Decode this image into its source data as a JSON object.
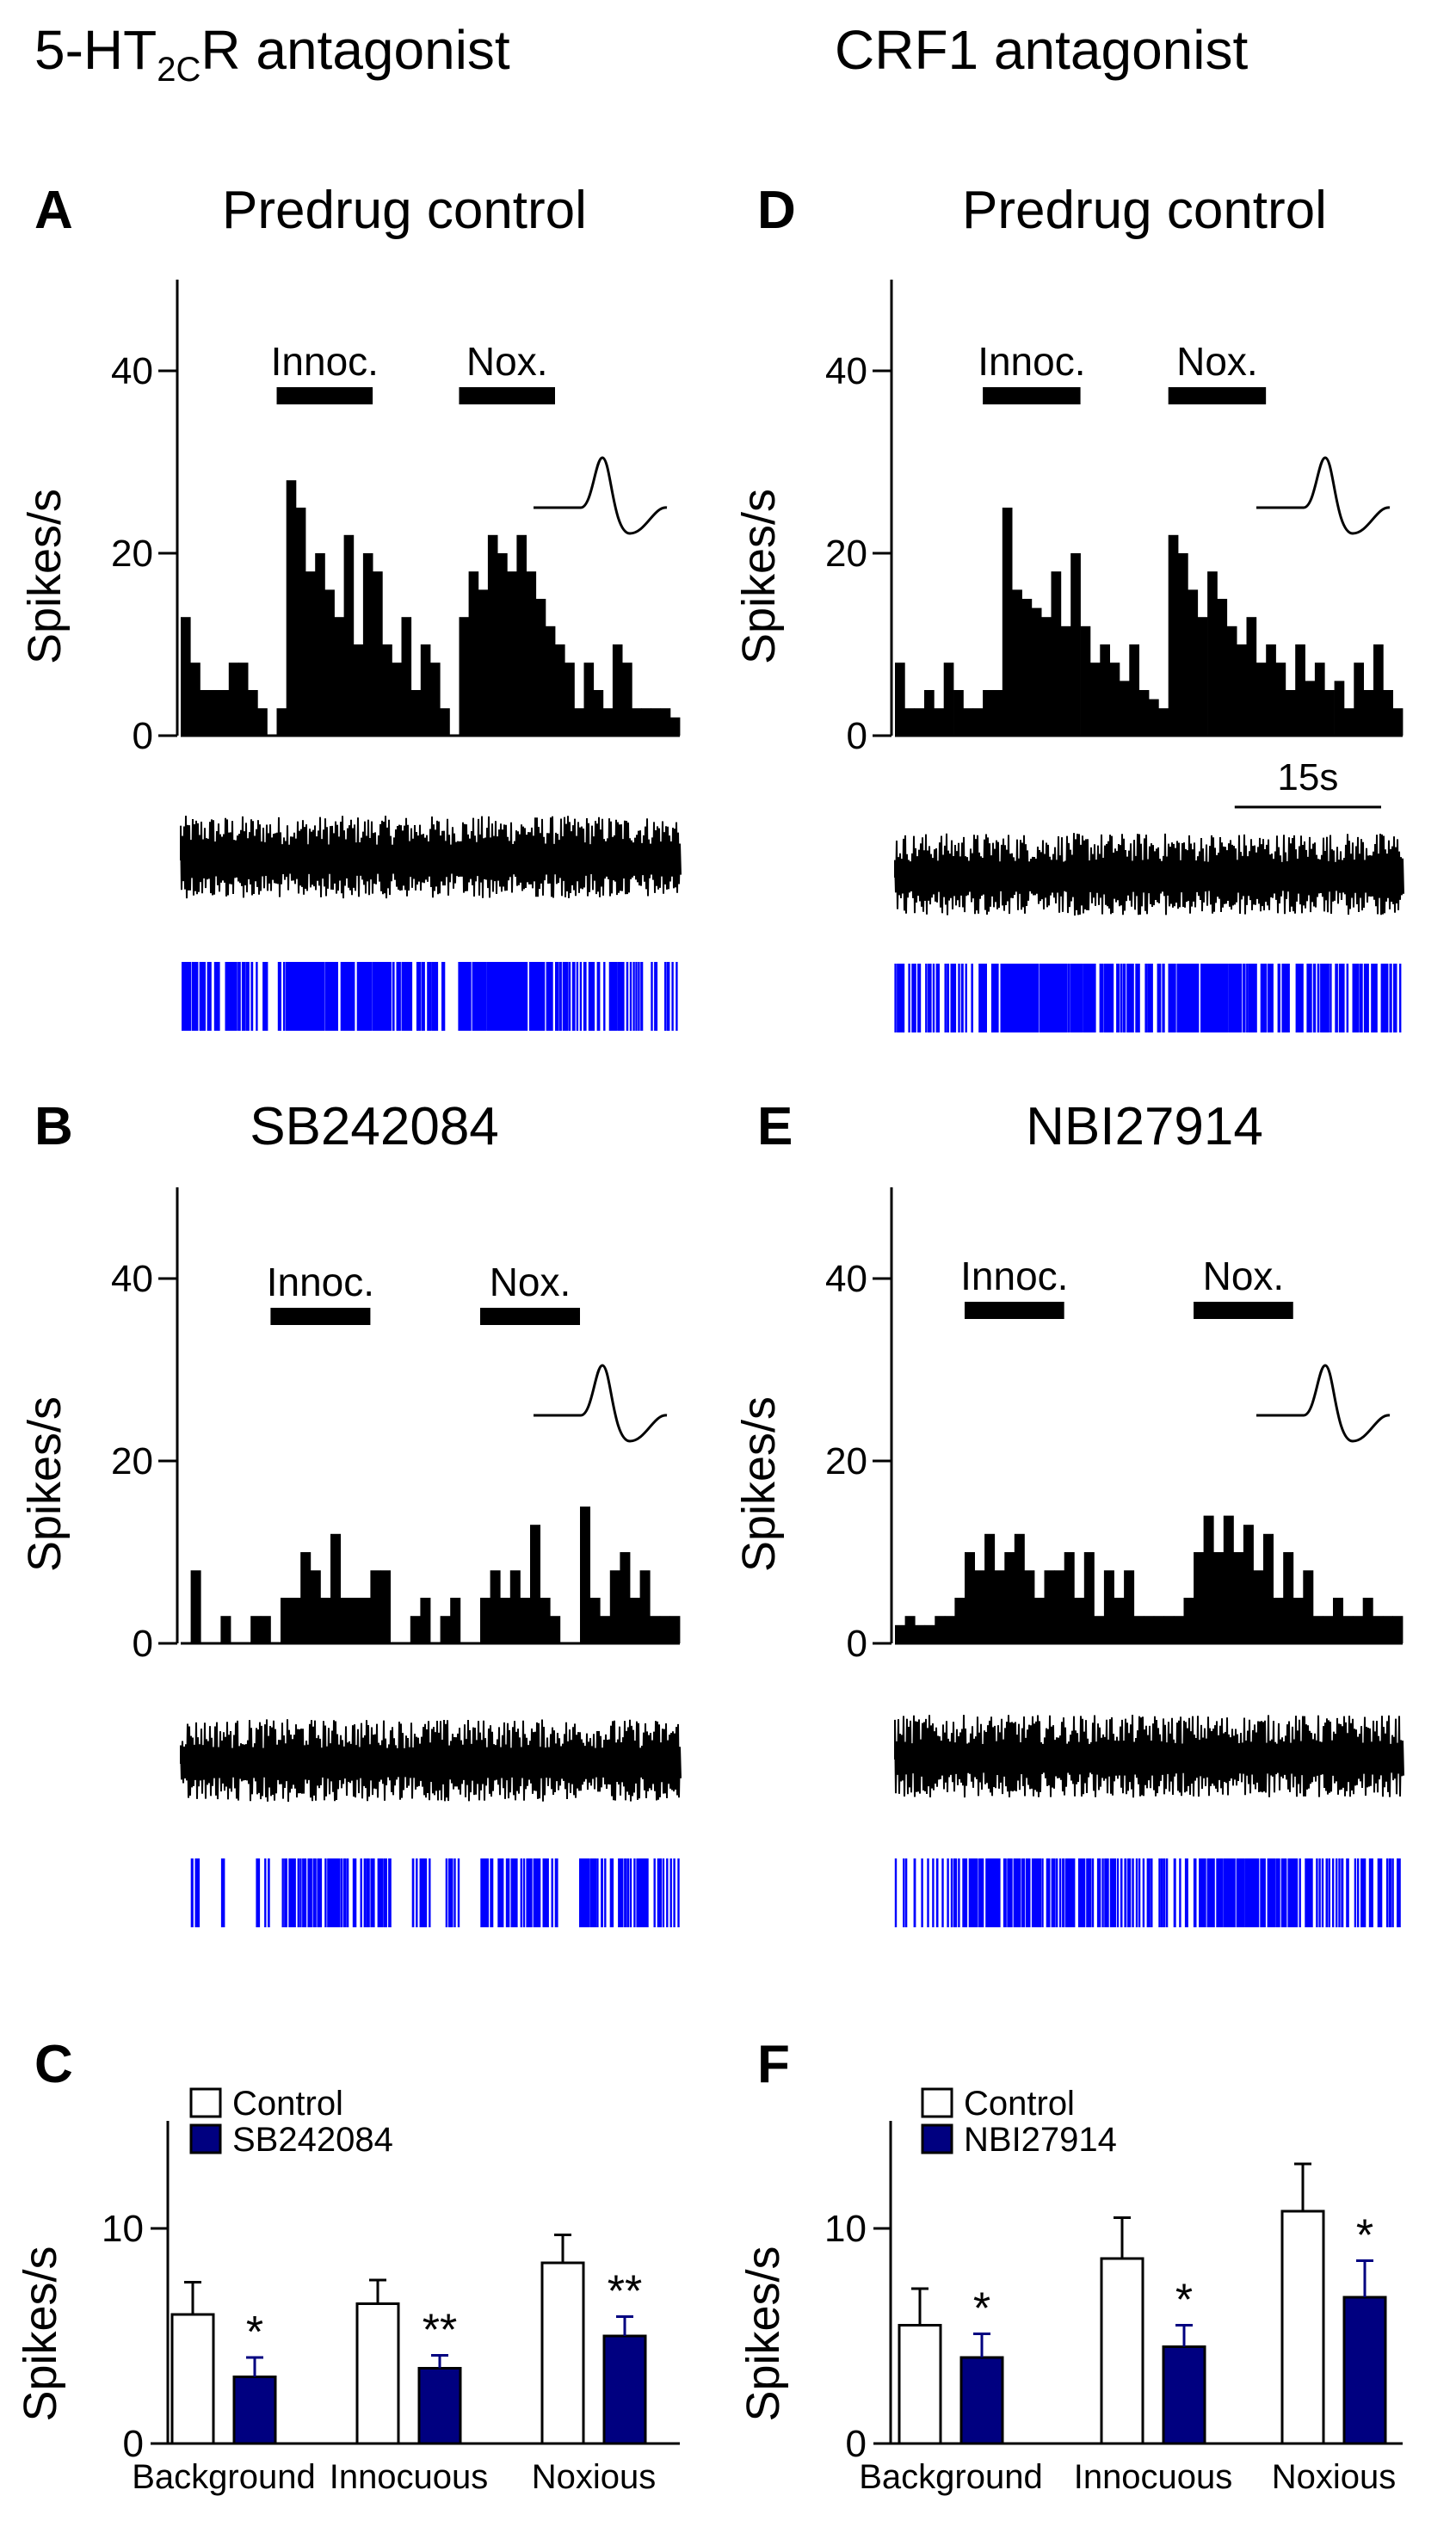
{
  "colors": {
    "ink": "#000000",
    "spike_blue": "#0000ff",
    "navy_bar": "#000080",
    "control_bar": "#ffffff"
  },
  "columns": [
    {
      "title_prefix": "5-HT",
      "title_sub": "2C",
      "title_suffix": "R antagonist"
    },
    {
      "title_prefix": "CRF1 antagonist",
      "title_sub": "",
      "title_suffix": ""
    }
  ],
  "scale_bar": {
    "label": "15s"
  },
  "chart_data": [
    {
      "panel": "A",
      "type": "bar",
      "title": "Predrug control",
      "ylabel": "Spikes/s",
      "ylim": [
        0,
        50
      ],
      "yticks": [
        0,
        20,
        40
      ],
      "stimulus_labels": [
        "Innoc.",
        "Nox."
      ],
      "bin_width_s": 1,
      "stimulus_bins": [
        [
          10,
          20
        ],
        [
          29,
          39
        ]
      ],
      "values": [
        13,
        8,
        5,
        5,
        5,
        8,
        8,
        5,
        3,
        0,
        3,
        28,
        25,
        18,
        20,
        16,
        13,
        22,
        10,
        20,
        18,
        10,
        8,
        13,
        5,
        10,
        8,
        3,
        0,
        13,
        18,
        16,
        22,
        20,
        18,
        22,
        18,
        15,
        12,
        10,
        8,
        3,
        8,
        5,
        3,
        10,
        8,
        3,
        3,
        3,
        3,
        2
      ]
    },
    {
      "panel": "D",
      "type": "bar",
      "title": "Predrug control",
      "ylabel": "Spikes/s",
      "ylim": [
        0,
        50
      ],
      "yticks": [
        0,
        20,
        40
      ],
      "stimulus_labels": [
        "Innoc.",
        "Nox."
      ],
      "bin_width_s": 1,
      "stimulus_bins": [
        [
          9,
          19
        ],
        [
          28,
          38
        ]
      ],
      "values": [
        8,
        3,
        3,
        5,
        3,
        8,
        5,
        3,
        3,
        5,
        5,
        25,
        16,
        15,
        14,
        13,
        18,
        12,
        20,
        12,
        8,
        10,
        8,
        6,
        10,
        5,
        4,
        3,
        22,
        20,
        16,
        13,
        18,
        15,
        12,
        10,
        13,
        8,
        10,
        8,
        5,
        10,
        6,
        8,
        5,
        6,
        3,
        8,
        5,
        10,
        5,
        3
      ]
    },
    {
      "panel": "B",
      "type": "bar",
      "title": "SB242084",
      "ylabel": "Spikes/s",
      "ylim": [
        0,
        50
      ],
      "yticks": [
        0,
        20,
        40
      ],
      "stimulus_labels": [
        "Innoc.",
        "Nox."
      ],
      "bin_width_s": 1,
      "stimulus_bins": [
        [
          9,
          19
        ],
        [
          30,
          40
        ]
      ],
      "values": [
        0,
        8,
        0,
        0,
        3,
        0,
        0,
        3,
        3,
        0,
        5,
        5,
        10,
        8,
        5,
        12,
        5,
        5,
        5,
        8,
        8,
        0,
        0,
        3,
        5,
        0,
        3,
        5,
        0,
        0,
        5,
        8,
        5,
        8,
        5,
        13,
        5,
        3,
        0,
        0,
        15,
        5,
        3,
        8,
        10,
        5,
        8,
        3,
        3,
        3
      ]
    },
    {
      "panel": "E",
      "type": "bar",
      "title": "NBI27914",
      "ylabel": "Spikes/s",
      "ylim": [
        0,
        50
      ],
      "yticks": [
        0,
        20,
        40
      ],
      "stimulus_labels": [
        "Innoc.",
        "Nox."
      ],
      "bin_width_s": 1,
      "stimulus_bins": [
        [
          7,
          17
        ],
        [
          30,
          40
        ]
      ],
      "values": [
        2,
        3,
        2,
        2,
        3,
        3,
        5,
        10,
        8,
        12,
        8,
        10,
        12,
        8,
        5,
        8,
        8,
        10,
        5,
        10,
        3,
        8,
        5,
        8,
        3,
        3,
        3,
        3,
        3,
        5,
        10,
        14,
        10,
        14,
        10,
        13,
        8,
        12,
        5,
        10,
        5,
        8,
        3,
        3,
        5,
        3,
        3,
        5,
        3,
        3,
        3
      ]
    },
    {
      "panel": "C",
      "type": "bar",
      "ylabel": "Spikes/s",
      "ylim": [
        0,
        15
      ],
      "yticks": [
        0,
        10
      ],
      "categories": [
        "Background",
        "Innocuous",
        "Noxious"
      ],
      "series": [
        {
          "name": "Control",
          "values": [
            6.0,
            6.5,
            8.4
          ],
          "errors": [
            1.5,
            1.1,
            1.3
          ]
        },
        {
          "name": "SB242084",
          "values": [
            3.1,
            3.5,
            5.0
          ],
          "errors": [
            0.9,
            0.6,
            0.9
          ]
        }
      ],
      "significance": [
        "*",
        "**",
        "**"
      ]
    },
    {
      "panel": "F",
      "type": "bar",
      "ylabel": "Spikes/s",
      "ylim": [
        0,
        15
      ],
      "yticks": [
        0,
        10
      ],
      "categories": [
        "Background",
        "Innocuous",
        "Noxious"
      ],
      "series": [
        {
          "name": "Control",
          "values": [
            5.5,
            8.6,
            10.8
          ],
          "errors": [
            1.7,
            1.9,
            2.2
          ]
        },
        {
          "name": "NBI27914",
          "values": [
            4.0,
            4.5,
            6.8
          ],
          "errors": [
            1.1,
            1.0,
            1.7
          ]
        }
      ],
      "significance": [
        "*",
        "*",
        "*"
      ]
    }
  ]
}
